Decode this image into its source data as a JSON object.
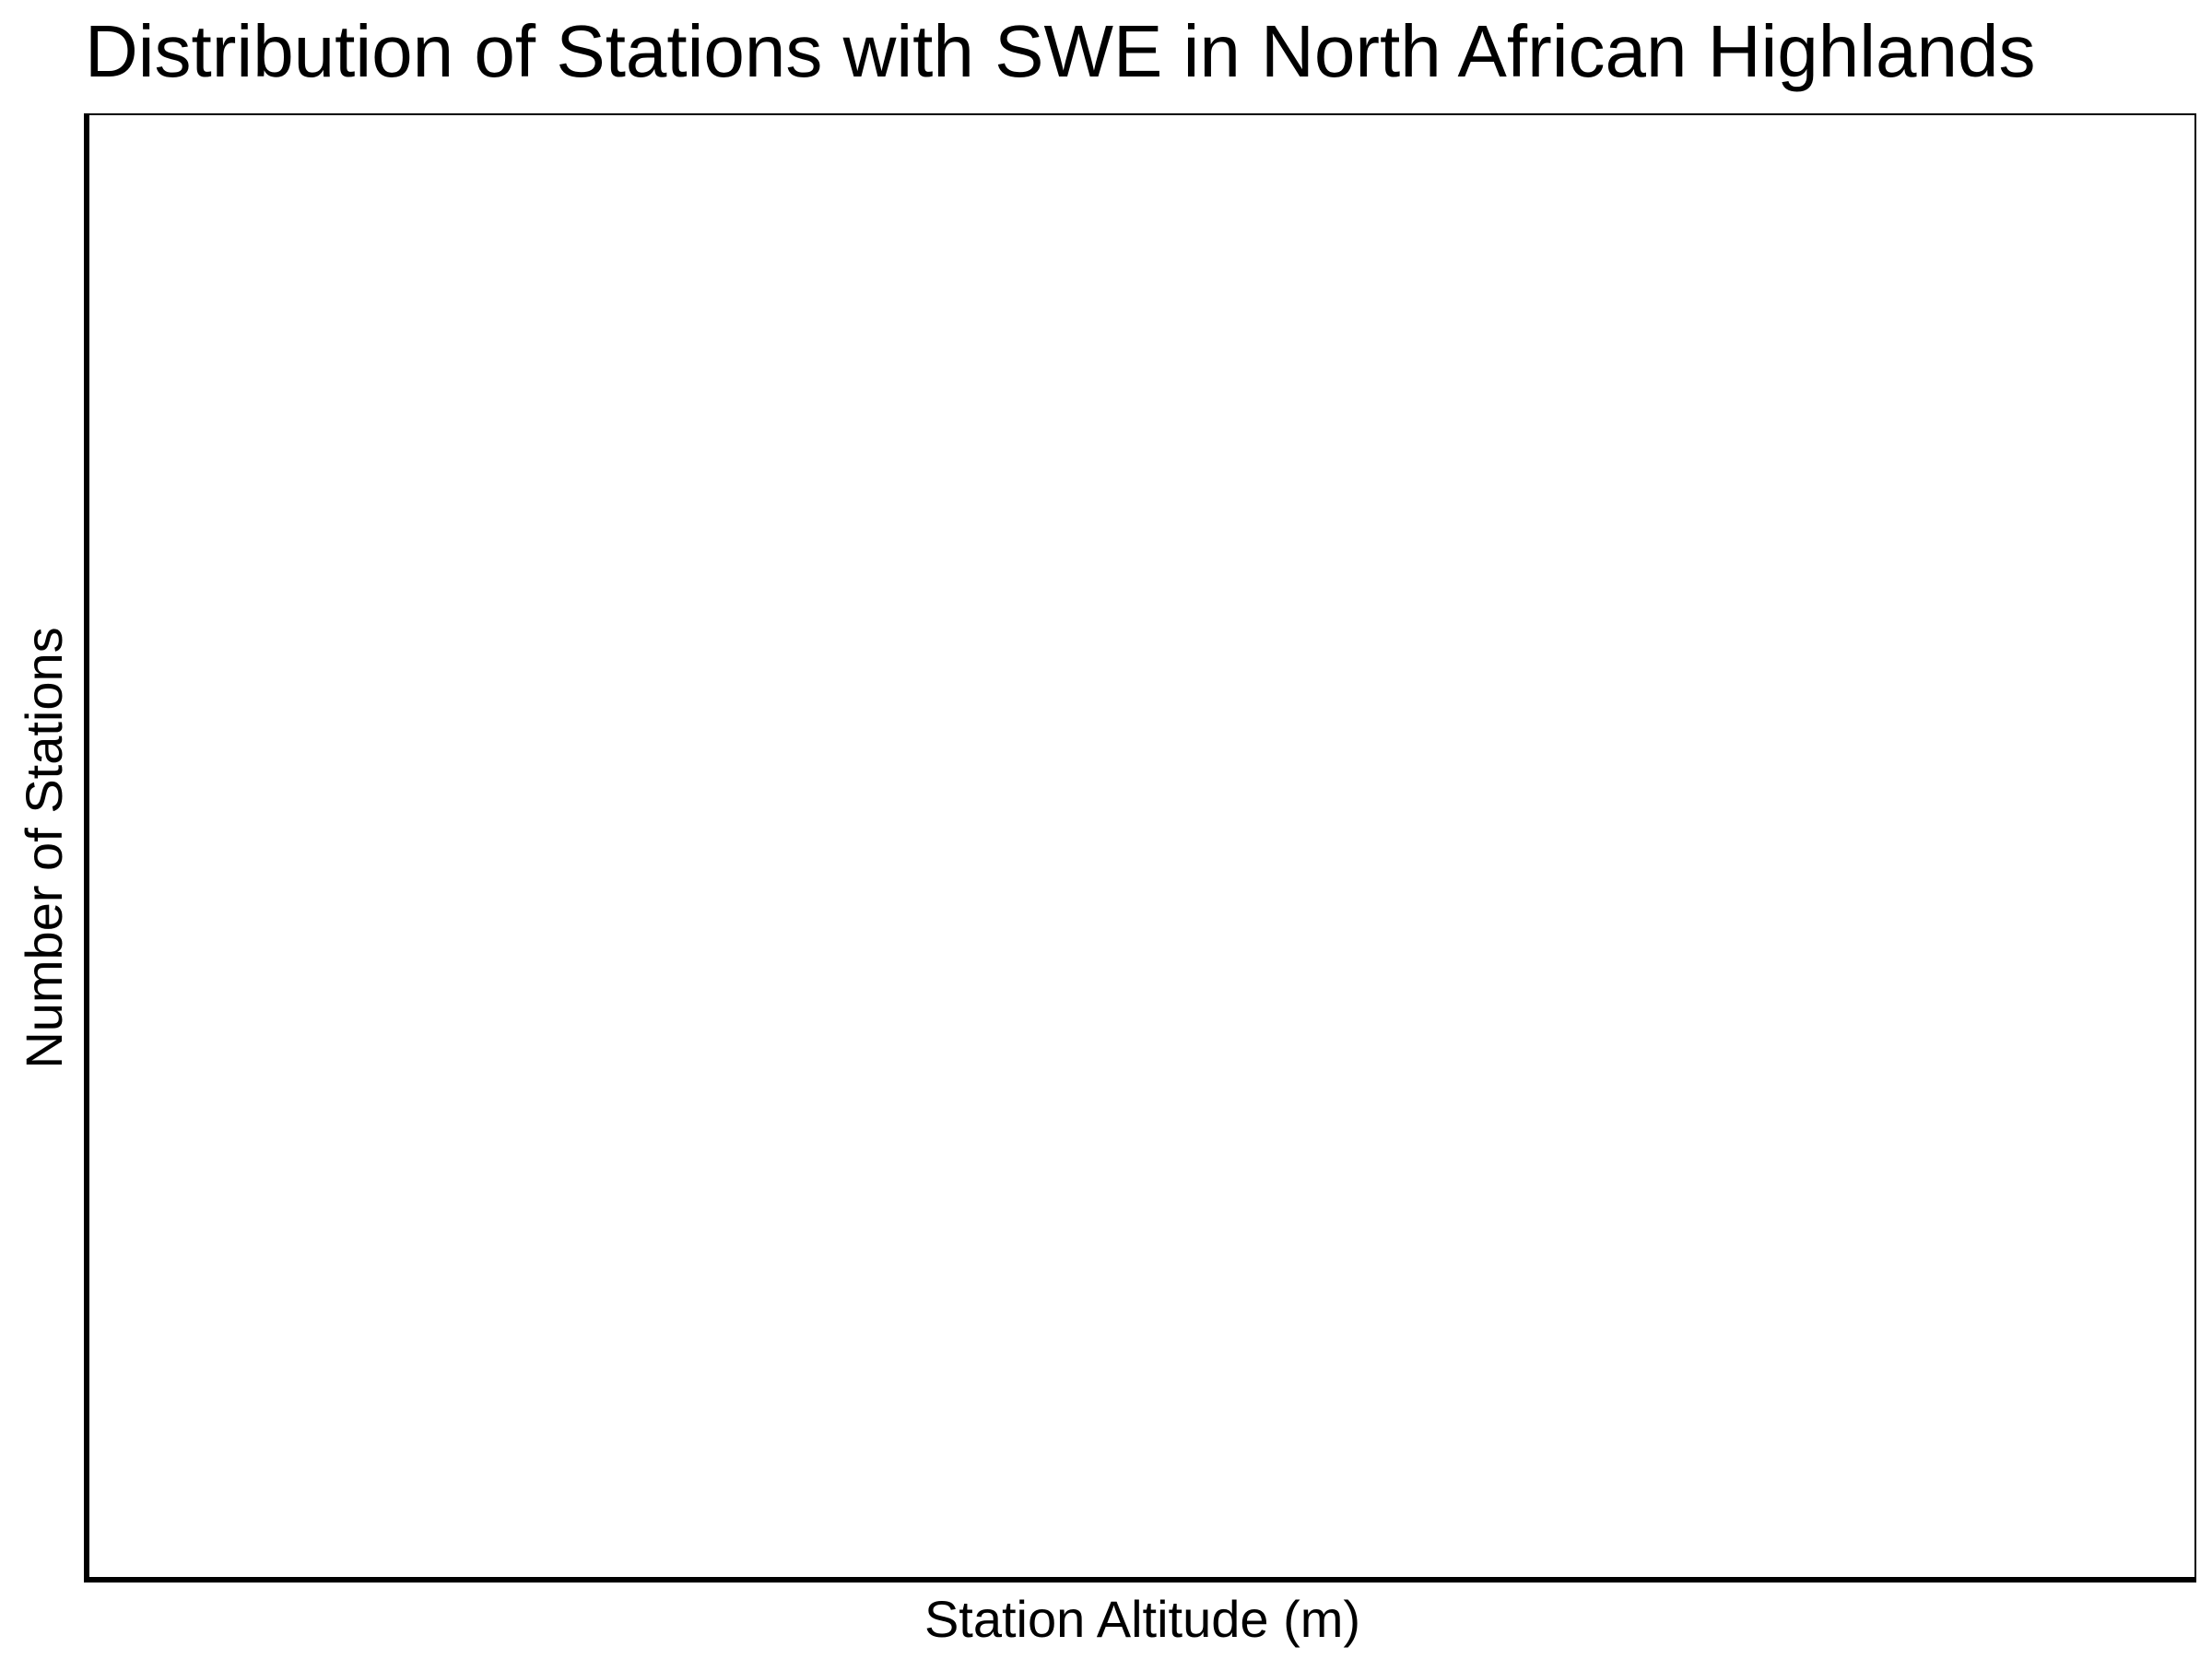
{
  "chart_data": {
    "type": "bar",
    "title": "Distribution of Stations with SWE in North African Highlands",
    "xlabel": "Station Altitude (m)",
    "ylabel": "Number of Stations",
    "categories": [],
    "values": [],
    "grid": false,
    "legend": "none"
  }
}
